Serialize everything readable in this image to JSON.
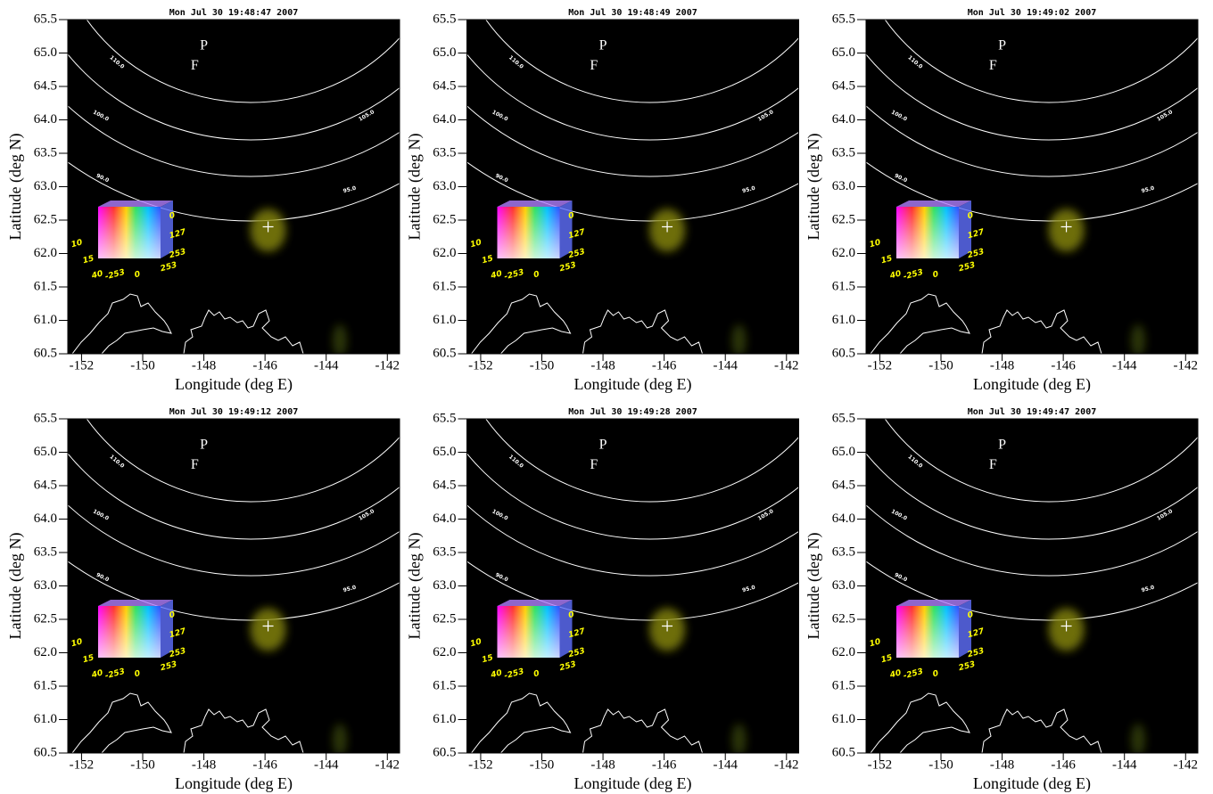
{
  "chart_data": [
    {
      "type": "map",
      "title": "Mon Jul 30 19:48:47 2007",
      "xlabel": "Longitude (deg E)",
      "ylabel": "Latitude (deg N)",
      "xlim": [
        -152.45,
        -141.6
      ],
      "ylim": [
        60.5,
        65.5
      ],
      "xticks": [
        -152,
        -150,
        -148,
        -146,
        -144,
        -142
      ],
      "yticks": [
        60.5,
        {
          "value": 61,
          "label": "61.0"
        },
        61.5,
        {
          "value": 62,
          "label": "62.0"
        },
        62.5,
        {
          "value": 63,
          "label": "63.0"
        },
        63.5,
        {
          "value": 64,
          "label": "64.0"
        },
        64.5,
        {
          "value": 65,
          "label": "65.0"
        },
        65.5
      ],
      "contour_labels": [
        "110.0",
        "100.0",
        "105.0",
        "90.0",
        "95.0"
      ],
      "annotations": [
        {
          "text": "P",
          "lon": -148.0,
          "lat": 65.1
        },
        {
          "text": "F",
          "lon": -148.3,
          "lat": 64.8
        }
      ],
      "marker": {
        "lon": -145.9,
        "lat": 62.4
      },
      "cube_labels": {
        "right": [
          "0",
          "127",
          "253"
        ],
        "left": [
          "10",
          "15",
          "40"
        ],
        "bottom": [
          "-253",
          "0",
          "253"
        ]
      }
    },
    {
      "type": "map",
      "title": "Mon Jul 30 19:48:49 2007",
      "xlabel": "Longitude (deg E)",
      "ylabel": "Latitude (deg N)",
      "xlim": [
        -152.45,
        -141.6
      ],
      "ylim": [
        60.5,
        65.5
      ],
      "xticks": [
        -152,
        -150,
        -148,
        -146,
        -144,
        -142
      ],
      "yticks": [
        60.5,
        {
          "value": 61,
          "label": "61.0"
        },
        61.5,
        {
          "value": 62,
          "label": "62.0"
        },
        62.5,
        {
          "value": 63,
          "label": "63.0"
        },
        63.5,
        {
          "value": 64,
          "label": "64.0"
        },
        64.5,
        {
          "value": 65,
          "label": "65.0"
        },
        65.5
      ],
      "contour_labels": [
        "110.0",
        "100.0",
        "105.0",
        "90.0",
        "95.0"
      ],
      "annotations": [
        {
          "text": "P",
          "lon": -148.0,
          "lat": 65.1
        },
        {
          "text": "F",
          "lon": -148.3,
          "lat": 64.8
        }
      ],
      "marker": {
        "lon": -145.9,
        "lat": 62.4
      },
      "cube_labels": {
        "right": [
          "0",
          "127",
          "253"
        ],
        "left": [
          "10",
          "15",
          "40"
        ],
        "bottom": [
          "-253",
          "0",
          "253"
        ]
      }
    },
    {
      "type": "map",
      "title": "Mon Jul 30 19:49:02 2007",
      "xlabel": "Longitude (deg E)",
      "ylabel": "Latitude (deg N)",
      "xlim": [
        -152.45,
        -141.6
      ],
      "ylim": [
        60.5,
        65.5
      ],
      "xticks": [
        -152,
        -150,
        -148,
        -146,
        -144,
        -142
      ],
      "yticks": [
        60.5,
        {
          "value": 61,
          "label": "61.0"
        },
        61.5,
        {
          "value": 62,
          "label": "62.0"
        },
        62.5,
        {
          "value": 63,
          "label": "63.0"
        },
        63.5,
        {
          "value": 64,
          "label": "64.0"
        },
        64.5,
        {
          "value": 65,
          "label": "65.0"
        },
        65.5
      ],
      "contour_labels": [
        "110.0",
        "100.0",
        "105.0",
        "90.0",
        "95.0"
      ],
      "annotations": [
        {
          "text": "P",
          "lon": -148.0,
          "lat": 65.1
        },
        {
          "text": "F",
          "lon": -148.3,
          "lat": 64.8
        }
      ],
      "marker": {
        "lon": -145.9,
        "lat": 62.4
      },
      "cube_labels": {
        "right": [
          "0",
          "127",
          "253"
        ],
        "left": [
          "10",
          "15",
          "40"
        ],
        "bottom": [
          "-253",
          "0",
          "253"
        ]
      }
    },
    {
      "type": "map",
      "title": "Mon Jul 30 19:49:12 2007",
      "xlabel": "Longitude (deg E)",
      "ylabel": "Latitude (deg N)",
      "xlim": [
        -152.45,
        -141.6
      ],
      "ylim": [
        60.5,
        65.5
      ],
      "xticks": [
        -152,
        -150,
        -148,
        -146,
        -144,
        -142
      ],
      "yticks": [
        60.5,
        {
          "value": 61,
          "label": "61.0"
        },
        61.5,
        {
          "value": 62,
          "label": "62.0"
        },
        62.5,
        {
          "value": 63,
          "label": "63.0"
        },
        63.5,
        {
          "value": 64,
          "label": "64.0"
        },
        64.5,
        {
          "value": 65,
          "label": "65.0"
        },
        65.5
      ],
      "contour_labels": [
        "110.0",
        "100.0",
        "105.0",
        "90.0",
        "95.0"
      ],
      "annotations": [
        {
          "text": "P",
          "lon": -148.0,
          "lat": 65.1
        },
        {
          "text": "F",
          "lon": -148.3,
          "lat": 64.8
        }
      ],
      "marker": {
        "lon": -145.9,
        "lat": 62.4
      },
      "cube_labels": {
        "right": [
          "0",
          "127",
          "253"
        ],
        "left": [
          "10",
          "15",
          "40"
        ],
        "bottom": [
          "-253",
          "0",
          "253"
        ]
      }
    },
    {
      "type": "map",
      "title": "Mon Jul 30 19:49:28 2007",
      "xlabel": "Longitude (deg E)",
      "ylabel": "Latitude (deg N)",
      "xlim": [
        -152.45,
        -141.6
      ],
      "ylim": [
        60.5,
        65.5
      ],
      "xticks": [
        -152,
        -150,
        -148,
        -146,
        -144,
        -142
      ],
      "yticks": [
        60.5,
        {
          "value": 61,
          "label": "61.0"
        },
        61.5,
        {
          "value": 62,
          "label": "62.0"
        },
        62.5,
        {
          "value": 63,
          "label": "63.0"
        },
        63.5,
        {
          "value": 64,
          "label": "64.0"
        },
        64.5,
        {
          "value": 65,
          "label": "65.0"
        },
        65.5
      ],
      "contour_labels": [
        "110.0",
        "100.0",
        "105.0",
        "90.0",
        "95.0"
      ],
      "annotations": [
        {
          "text": "P",
          "lon": -148.0,
          "lat": 65.1
        },
        {
          "text": "F",
          "lon": -148.3,
          "lat": 64.8
        }
      ],
      "marker": {
        "lon": -145.9,
        "lat": 62.4
      },
      "cube_labels": {
        "right": [
          "0",
          "127",
          "253"
        ],
        "left": [
          "10",
          "15",
          "40"
        ],
        "bottom": [
          "-253",
          "0",
          "253"
        ]
      }
    },
    {
      "type": "map",
      "title": "Mon Jul 30 19:49:47 2007",
      "xlabel": "Longitude (deg E)",
      "ylabel": "Latitude (deg N)",
      "xlim": [
        -152.45,
        -141.6
      ],
      "ylim": [
        60.5,
        65.5
      ],
      "xticks": [
        -152,
        -150,
        -148,
        -146,
        -144,
        -142
      ],
      "yticks": [
        60.5,
        {
          "value": 61,
          "label": "61.0"
        },
        61.5,
        {
          "value": 62,
          "label": "62.0"
        },
        62.5,
        {
          "value": 63,
          "label": "63.0"
        },
        63.5,
        {
          "value": 64,
          "label": "64.0"
        },
        64.5,
        {
          "value": 65,
          "label": "65.0"
        },
        65.5
      ],
      "contour_labels": [
        "110.0",
        "100.0",
        "105.0",
        "90.0",
        "95.0"
      ],
      "annotations": [
        {
          "text": "P",
          "lon": -148.0,
          "lat": 65.1
        },
        {
          "text": "F",
          "lon": -148.3,
          "lat": 64.8
        }
      ],
      "marker": {
        "lon": -145.9,
        "lat": 62.4
      },
      "cube_labels": {
        "right": [
          "0",
          "127",
          "253"
        ],
        "left": [
          "10",
          "15",
          "40"
        ],
        "bottom": [
          "-253",
          "0",
          "253"
        ]
      }
    }
  ]
}
